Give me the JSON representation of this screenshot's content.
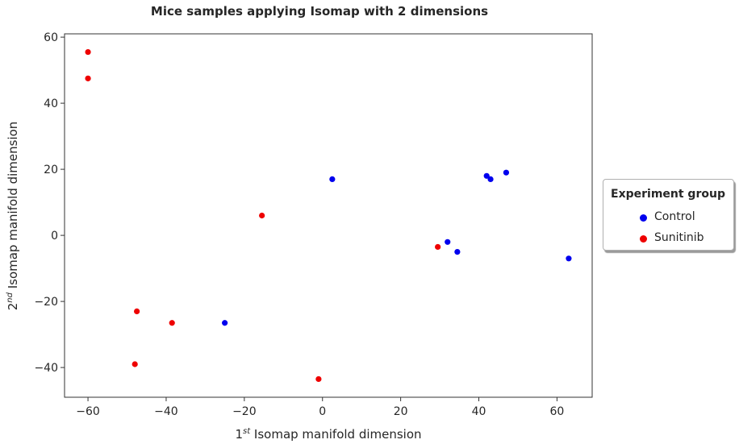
{
  "chart_data": {
    "type": "scatter",
    "title": "Mice samples applying Isomap with 2 dimensions",
    "xlabel": {
      "prefix": "1",
      "sup": "st",
      "rest": " Isomap manifold dimension"
    },
    "ylabel": {
      "prefix": "2",
      "sup": "nd",
      "rest": " Isomap manifold dimension"
    },
    "xlim": [
      -66,
      69
    ],
    "ylim": [
      -49,
      61
    ],
    "xticks": [
      -60,
      -40,
      -20,
      0,
      20,
      40,
      60
    ],
    "yticks": [
      -40,
      -20,
      0,
      20,
      40,
      60
    ],
    "xtick_labels": [
      "−60",
      "−40",
      "−20",
      "0",
      "20",
      "40",
      "60"
    ],
    "ytick_labels": [
      "−40",
      "−20",
      "0",
      "20",
      "40",
      "60"
    ],
    "grid": false,
    "legend": {
      "title": "Experiment group",
      "placement": "outside-right"
    },
    "series": [
      {
        "name": "Control",
        "color": "#0000ee",
        "x": [
          2.5,
          -25,
          32,
          34.5,
          42,
          43,
          47,
          63
        ],
        "y": [
          17,
          -26.5,
          -2,
          -5,
          18,
          17,
          19,
          -7
        ]
      },
      {
        "name": "Sunitinib",
        "color": "#ee0000",
        "x": [
          -60,
          -60,
          -47.5,
          -38.5,
          -48,
          -15.5,
          -1,
          29.5
        ],
        "y": [
          55.5,
          47.5,
          -23,
          -26.5,
          -39,
          6,
          -43.5,
          -3.5
        ]
      }
    ]
  }
}
